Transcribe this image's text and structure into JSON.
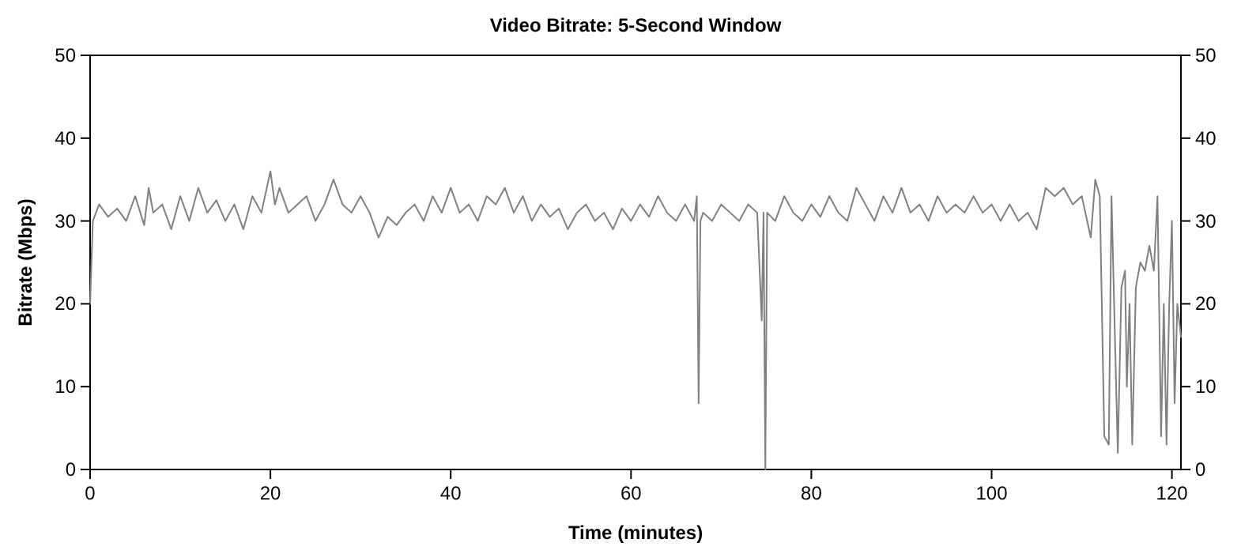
{
  "chart_data": {
    "type": "line",
    "title": "Video Bitrate: 5-Second Window",
    "xlabel": "Time (minutes)",
    "ylabel": "Bitrate (Mbps)",
    "xlim": [
      0,
      121
    ],
    "xticks": [
      0,
      20,
      40,
      60,
      80,
      100,
      120
    ],
    "ylim": [
      0,
      50
    ],
    "yticks": [
      0,
      10,
      20,
      30,
      40,
      50
    ],
    "y2lim": [
      0,
      50
    ],
    "y2ticks": [
      0,
      10,
      20,
      30,
      40,
      50
    ],
    "grid": false,
    "marker": "none",
    "line_style": "solid",
    "series": [
      {
        "color": "#808080",
        "x": [
          0,
          0.3,
          1,
          2,
          3,
          4,
          5,
          6,
          6.5,
          7,
          8,
          9,
          10,
          11,
          12,
          13,
          14,
          15,
          16,
          17,
          18,
          19,
          20,
          20.5,
          21,
          22,
          23,
          24,
          25,
          26,
          27,
          28,
          29,
          30,
          31,
          32,
          33,
          34,
          35,
          36,
          37,
          38,
          39,
          40,
          41,
          42,
          43,
          44,
          45,
          46,
          47,
          48,
          49,
          50,
          51,
          52,
          53,
          54,
          55,
          56,
          57,
          58,
          59,
          60,
          61,
          62,
          63,
          64,
          65,
          66,
          67,
          67.3,
          67.5,
          67.7,
          68,
          69,
          70,
          71,
          72,
          73,
          74,
          74.5,
          74.7,
          74.9,
          75.1,
          76,
          77,
          78,
          79,
          80,
          81,
          82,
          83,
          84,
          85,
          86,
          87,
          88,
          89,
          90,
          91,
          92,
          93,
          94,
          95,
          96,
          97,
          98,
          99,
          100,
          101,
          102,
          103,
          104,
          105,
          106,
          107,
          108,
          109,
          110,
          111,
          111.5,
          112,
          112.5,
          113,
          113.3,
          113.7,
          114,
          114.4,
          114.8,
          115,
          115.3,
          115.6,
          116,
          116.5,
          117,
          117.5,
          118,
          118.4,
          118.8,
          119.1,
          119.4,
          119.7,
          120,
          120.3,
          120.6,
          121
        ],
        "values": [
          20,
          30,
          32,
          30.5,
          31.5,
          30,
          33,
          29.5,
          34,
          31,
          32,
          29,
          33,
          30,
          34,
          31,
          32.5,
          30,
          32,
          29,
          33,
          31,
          36,
          32,
          34,
          31,
          32,
          33,
          30,
          32,
          35,
          32,
          31,
          33,
          31,
          28,
          30.5,
          29.5,
          31,
          32,
          30,
          33,
          31,
          34,
          31,
          32,
          30,
          33,
          32,
          34,
          31,
          33,
          30,
          32,
          30.5,
          31.5,
          29,
          31,
          32,
          30,
          31,
          29,
          31.5,
          30,
          32,
          30.5,
          33,
          31,
          30,
          32,
          30,
          33,
          8,
          30,
          31,
          30,
          32,
          31,
          30,
          32,
          31,
          18,
          31,
          0,
          31,
          30,
          33,
          31,
          30,
          32,
          30.5,
          33,
          31,
          30,
          34,
          32,
          30,
          33,
          31,
          34,
          31,
          32,
          30,
          33,
          31,
          32,
          31,
          33,
          31,
          32,
          30,
          32,
          30,
          31,
          29,
          34,
          33,
          34,
          32,
          33,
          28,
          35,
          33,
          4,
          3,
          33,
          15,
          2,
          22,
          24,
          10,
          20,
          3,
          22,
          25,
          24,
          27,
          24,
          33,
          4,
          20,
          3,
          20,
          30,
          8,
          20,
          16
        ]
      }
    ]
  }
}
